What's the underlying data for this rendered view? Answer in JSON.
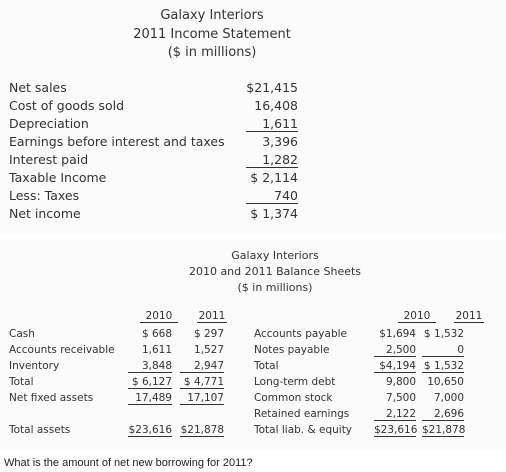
{
  "income": {
    "title": [
      "Galaxy Interiors",
      "2011 Income Statement",
      "($ in millions)"
    ],
    "rows": [
      {
        "label": "Net sales",
        "value": "$21,415",
        "underline": false
      },
      {
        "label": "Cost of goods sold",
        "value": "16,408",
        "underline": false
      },
      {
        "label": "Depreciation",
        "value": "1,611",
        "underline": true
      },
      {
        "label": "Earnings before interest and taxes",
        "value": "3,396",
        "underline": false
      },
      {
        "label": "Interest paid",
        "value": "1,282",
        "underline": true
      },
      {
        "label": "Taxable Income",
        "value": "$ 2,114",
        "underline": false
      },
      {
        "label": "Less: Taxes",
        "value": "740",
        "underline": true
      },
      {
        "label": "Net income",
        "value": "$ 1,374",
        "underline": false
      }
    ]
  },
  "balance": {
    "title": [
      "Galaxy Interiors",
      "2010 and 2011 Balance Sheets",
      "($ in millions)"
    ],
    "years": [
      "2010",
      "2011"
    ],
    "assets": [
      {
        "label": "Cash",
        "v2010": "$  668",
        "v2011": "$   297",
        "u2010": false,
        "u2011": false
      },
      {
        "label": "Accounts receivable",
        "v2010": "1,611",
        "v2011": "1,527",
        "u2010": false,
        "u2011": false
      },
      {
        "label": "Inventory",
        "v2010": "3,848",
        "v2011": "2,947",
        "u2010": true,
        "u2011": true
      },
      {
        "label": "Total",
        "v2010": "$ 6,127",
        "v2011": "$ 4,771",
        "u2010": true,
        "u2011": true
      },
      {
        "label": "Net fixed assets",
        "v2010": "17,489",
        "v2011": "17,107",
        "u2010": true,
        "u2011": true
      }
    ],
    "total_assets": {
      "label": "Total assets",
      "v2010": "$23,616",
      "v2011": "$21,878"
    },
    "liabilities": [
      {
        "label": "Accounts payable",
        "v2010": "$1,694",
        "v2011": "$ 1,532",
        "u2010": false,
        "u2011": false
      },
      {
        "label": "Notes payable",
        "v2010": "2,500",
        "v2011": "0",
        "u2010": true,
        "u2011": true
      },
      {
        "label": "Total",
        "v2010": "$4,194",
        "v2011": "$ 1,532",
        "u2010": true,
        "u2011": true
      },
      {
        "label": "Long-term debt",
        "v2010": "9,800",
        "v2011": "10,650",
        "u2010": false,
        "u2011": false
      },
      {
        "label": "Common stock",
        "v2010": "7,500",
        "v2011": "7,000",
        "u2010": false,
        "u2011": false
      },
      {
        "label": "Retained earnings",
        "v2010": "2,122",
        "v2011": "2,696",
        "u2010": true,
        "u2011": true
      },
      {
        "label": "Total liab. & equity",
        "v2010": "$23,616",
        "v2011": "$21,878",
        "u2010": true,
        "u2011": true
      }
    ]
  },
  "question": "What is the amount of net new borrowing for 2011?"
}
